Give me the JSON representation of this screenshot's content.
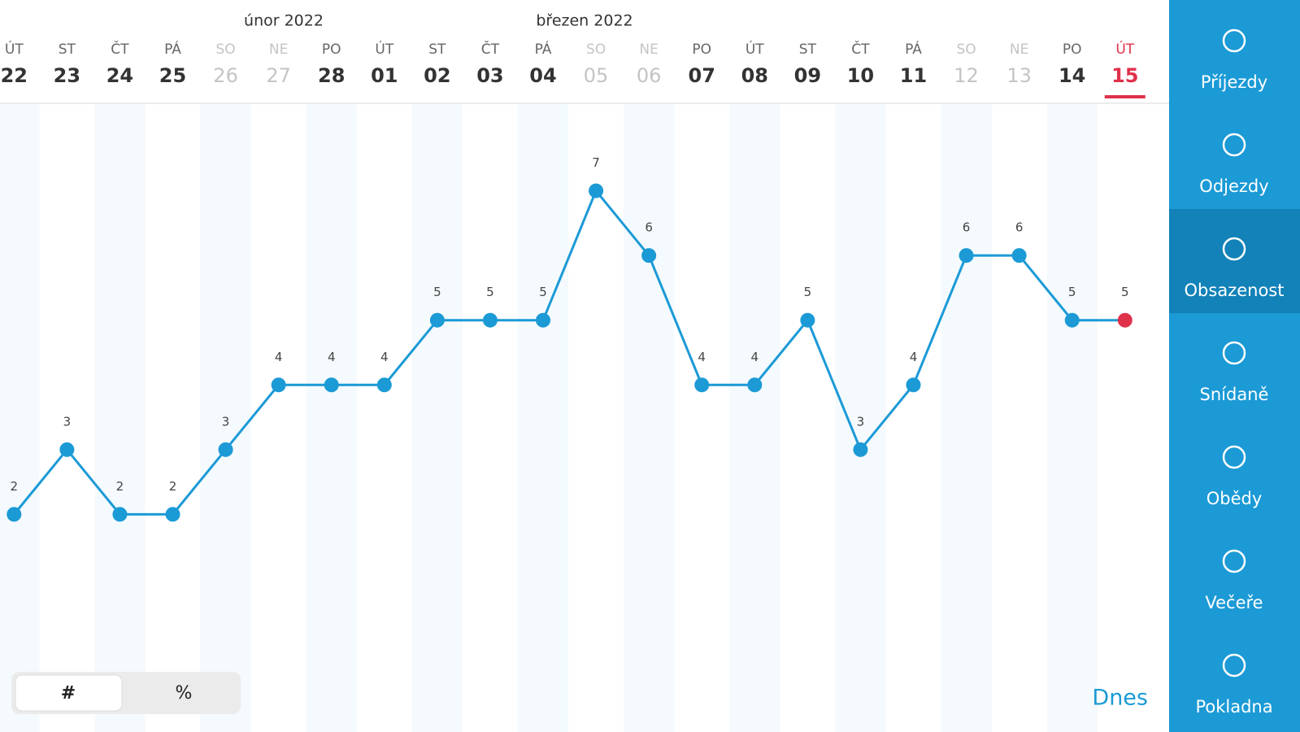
{
  "chart_data": {
    "type": "line",
    "categories": [
      "22",
      "23",
      "24",
      "25",
      "26",
      "27",
      "28",
      "01",
      "02",
      "03",
      "04",
      "05",
      "06",
      "07",
      "08",
      "09",
      "10",
      "11",
      "12",
      "13",
      "14",
      "15"
    ],
    "weekdays": [
      "ÚT",
      "ST",
      "ČT",
      "PÁ",
      "SO",
      "NE",
      "PO",
      "ÚT",
      "ST",
      "ČT",
      "PÁ",
      "SO",
      "NE",
      "PO",
      "ÚT",
      "ST",
      "ČT",
      "PÁ",
      "SO",
      "NE",
      "PO",
      "ÚT"
    ],
    "weekend": [
      false,
      false,
      false,
      false,
      true,
      true,
      false,
      false,
      false,
      false,
      false,
      true,
      true,
      false,
      false,
      false,
      false,
      false,
      true,
      true,
      false,
      false
    ],
    "today_index": 21,
    "today_color": "#e0314b",
    "values": [
      2,
      3,
      2,
      2,
      3,
      4,
      4,
      4,
      5,
      5,
      5,
      7,
      6,
      4,
      4,
      5,
      3,
      4,
      6,
      6,
      5,
      5
    ],
    "color": "#1b9ad6",
    "ylim": [
      0,
      8
    ]
  },
  "header": {
    "months": [
      "únor 2022",
      "březen 2022"
    ]
  },
  "toggle": {
    "options": [
      "#",
      "%"
    ],
    "selected": 0
  },
  "today_button": "Dnes",
  "sidebar": {
    "items": [
      "Příjezdy",
      "Odjezdy",
      "Obsazenost",
      "Snídaně",
      "Obědy",
      "Večeře",
      "Pokladna"
    ],
    "active": 2
  }
}
